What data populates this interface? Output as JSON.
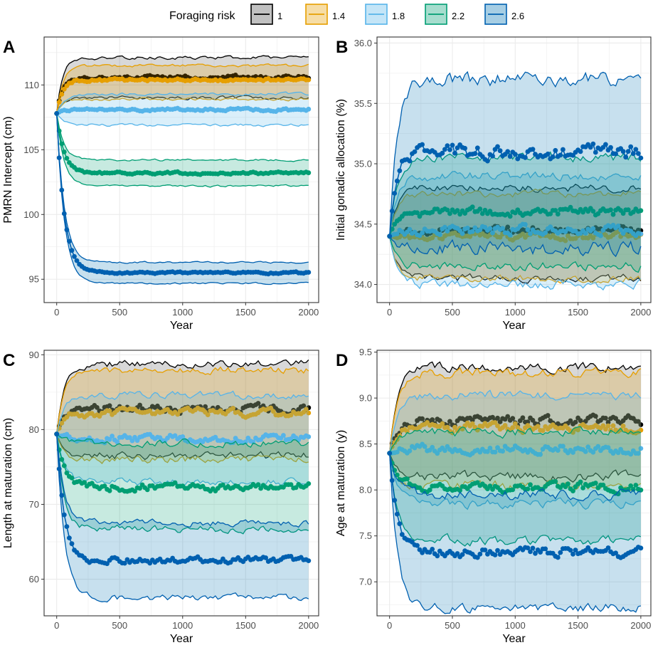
{
  "legend": {
    "title": "Foraging risk",
    "entries": [
      {
        "label": "1",
        "color": "#000000",
        "fill": "#4d4d4d"
      },
      {
        "label": "1.4",
        "color": "#E69F00",
        "fill": "#E69F00"
      },
      {
        "label": "1.8",
        "color": "#56B4E9",
        "fill": "#56B4E9"
      },
      {
        "label": "2.2",
        "color": "#009E73",
        "fill": "#009E73"
      },
      {
        "label": "2.6",
        "color": "#0060B0",
        "fill": "#0072B2"
      }
    ]
  },
  "chart_data": [
    {
      "letter": "A",
      "type": "line",
      "xlabel": "Year",
      "ylabel": "PMRN Intercept (cm)",
      "xlim": [
        -100,
        2080
      ],
      "ylim": [
        93.2,
        113.7
      ],
      "xticks": [
        0,
        500,
        1000,
        1500,
        2000
      ],
      "yticks": [
        95,
        100,
        105,
        110
      ],
      "grid": true,
      "series": [
        {
          "name": "1",
          "start": 107.8,
          "mean": 110.6,
          "low": 109.0,
          "high": 112.1
        },
        {
          "name": "1.4",
          "start": 107.8,
          "mean": 110.4,
          "low": 108.9,
          "high": 111.5
        },
        {
          "name": "1.8",
          "start": 107.8,
          "mean": 108.1,
          "low": 106.9,
          "high": 109.3
        },
        {
          "name": "2.2",
          "start": 107.8,
          "mean": 103.2,
          "low": 102.2,
          "high": 104.2
        },
        {
          "name": "2.6",
          "start": 107.8,
          "mean": 95.5,
          "low": 94.7,
          "high": 96.3
        }
      ]
    },
    {
      "letter": "B",
      "type": "line",
      "xlabel": "Year",
      "ylabel": "Initial gonadic allocation (%)",
      "xlim": [
        -100,
        2080
      ],
      "ylim": [
        33.85,
        36.05
      ],
      "xticks": [
        0,
        500,
        1000,
        1500,
        2000
      ],
      "yticks": [
        34.0,
        34.5,
        35.0,
        35.5,
        36.0
      ],
      "grid": true,
      "series": [
        {
          "name": "1",
          "start": 34.4,
          "mean": 34.45,
          "low": 34.05,
          "high": 34.8
        },
        {
          "name": "1.4",
          "start": 34.4,
          "mean": 34.4,
          "low": 34.05,
          "high": 34.75
        },
        {
          "name": "1.8",
          "start": 34.4,
          "mean": 34.45,
          "low": 34.0,
          "high": 34.9
        },
        {
          "name": "2.2",
          "start": 34.4,
          "mean": 34.6,
          "low": 34.15,
          "high": 35.05
        },
        {
          "name": "2.6",
          "start": 34.4,
          "mean": 35.1,
          "low": 34.3,
          "high": 35.7
        }
      ]
    },
    {
      "letter": "C",
      "type": "line",
      "xlabel": "Year",
      "ylabel": "Length at maturation (cm)",
      "xlim": [
        -100,
        2080
      ],
      "ylim": [
        55.1,
        90.6
      ],
      "xticks": [
        0,
        500,
        1000,
        1500,
        2000
      ],
      "yticks": [
        60,
        70,
        80,
        90
      ],
      "grid": true,
      "series": [
        {
          "name": "1",
          "start": 79.4,
          "mean": 82.8,
          "low": 76.5,
          "high": 88.8
        },
        {
          "name": "1.4",
          "start": 79.4,
          "mean": 82.3,
          "low": 76.0,
          "high": 88.0
        },
        {
          "name": "1.8",
          "start": 79.4,
          "mean": 78.8,
          "low": 73.0,
          "high": 84.6
        },
        {
          "name": "2.2",
          "start": 79.4,
          "mean": 72.3,
          "low": 66.7,
          "high": 78.2
        },
        {
          "name": "2.6",
          "start": 79.4,
          "mean": 62.5,
          "low": 57.5,
          "high": 67.5
        }
      ]
    },
    {
      "letter": "D",
      "type": "line",
      "xlabel": "Year",
      "ylabel": "Age at maturation (y)",
      "xlim": [
        -100,
        2080
      ],
      "ylim": [
        6.63,
        9.52
      ],
      "xticks": [
        0,
        500,
        1000,
        1500,
        2000
      ],
      "yticks": [
        7.0,
        7.5,
        8.0,
        8.5,
        9.0,
        9.5
      ],
      "grid": true,
      "series": [
        {
          "name": "1",
          "start": 8.4,
          "mean": 8.75,
          "low": 8.15,
          "high": 9.33
        },
        {
          "name": "1.4",
          "start": 8.4,
          "mean": 8.68,
          "low": 8.05,
          "high": 9.27
        },
        {
          "name": "1.8",
          "start": 8.4,
          "mean": 8.45,
          "low": 7.85,
          "high": 9.03
        },
        {
          "name": "2.2",
          "start": 8.4,
          "mean": 8.03,
          "low": 7.45,
          "high": 8.63
        },
        {
          "name": "2.6",
          "start": 8.4,
          "mean": 7.32,
          "low": 6.72,
          "high": 7.95
        }
      ]
    }
  ]
}
